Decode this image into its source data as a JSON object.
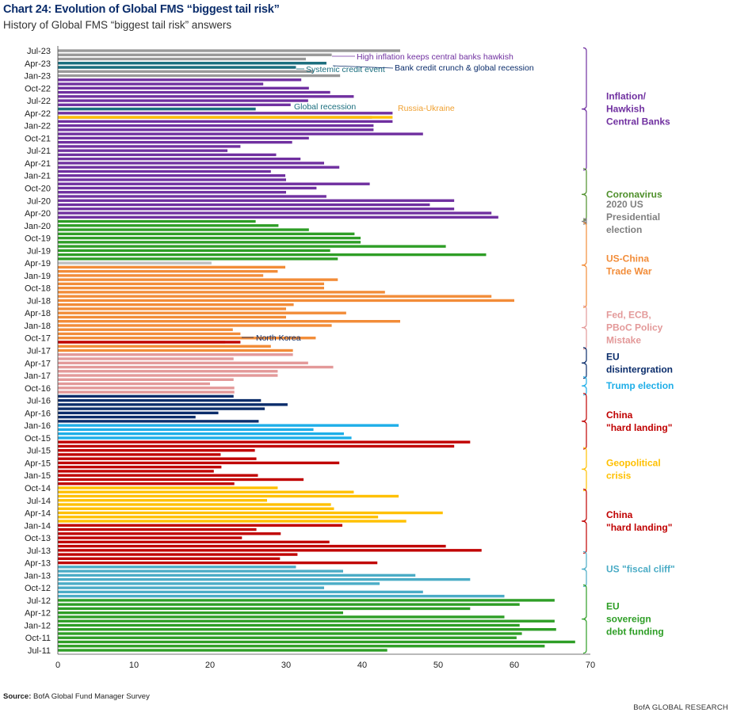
{
  "header": {
    "title": "Chart 24: Evolution of Global FMS “biggest tail risk”",
    "subtitle": "History of Global FMS “biggest tail risk” answers"
  },
  "source": {
    "label": "Source:",
    "text": "BofA Global Fund Manager Survey"
  },
  "footer": {
    "brand": "BofA GLOBAL RESEARCH"
  },
  "chart_data": {
    "type": "bar",
    "orientation": "horizontal",
    "first_month": "Jul-11",
    "last_month": "Jul-23",
    "xlim": [
      0,
      70
    ],
    "x_ticks": [
      0,
      10,
      20,
      30,
      40,
      50,
      60,
      70
    ],
    "y_tick_labels": [
      "Jul-23",
      "Apr-23",
      "Jan-23",
      "Oct-22",
      "Jul-22",
      "Apr-22",
      "Jan-22",
      "Oct-21",
      "Jul-21",
      "Apr-21",
      "Jan-21",
      "Oct-20",
      "Jul-20",
      "Apr-20",
      "Jan-20",
      "Oct-19",
      "Jul-19",
      "Apr-19",
      "Jan-19",
      "Oct-18",
      "Jul-18",
      "Apr-18",
      "Jan-18",
      "Oct-17",
      "Jul-17",
      "Apr-17",
      "Jan-17",
      "Oct-16",
      "Jul-16",
      "Apr-16",
      "Jan-16",
      "Oct-15",
      "Jul-15",
      "Apr-15",
      "Jan-15",
      "Oct-14",
      "Jul-14",
      "Apr-14",
      "Jan-14",
      "Oct-13",
      "Jul-13",
      "Apr-13",
      "Jan-13",
      "Oct-12",
      "Jul-12",
      "Apr-12",
      "Jan-12",
      "Oct-11",
      "Jul-11"
    ],
    "values": [
      43.3,
      64,
      68,
      60.3,
      61,
      65.5,
      60.7,
      65.3,
      58.7,
      37.5,
      54.2,
      60.7,
      65.3,
      58.7,
      48,
      35,
      42.3,
      54.2,
      47,
      37.5,
      31.3,
      42,
      29.2,
      31.5,
      55.7,
      51,
      35.7,
      24.2,
      29.3,
      26.1,
      37.4,
      45.8,
      42.1,
      50.6,
      36.3,
      35.9,
      27.5,
      44.8,
      38.9,
      28.9,
      23.2,
      32.3,
      26.3,
      20.5,
      21.5,
      37.0,
      26.1,
      21.4,
      25.9,
      52.1,
      54.2,
      38.6,
      37.6,
      33.6,
      44.8,
      26.4,
      18.1,
      21.1,
      27.2,
      30.2,
      26.7,
      23.1,
      23.2,
      23.2,
      20.0,
      23.1,
      28.9,
      28.9,
      36.2,
      32.9,
      23.1,
      30.9,
      30.9,
      28.0,
      22.0,
      33.9,
      24.0,
      23.0,
      36.0,
      45.0,
      30.0,
      37.9,
      30.0,
      31.0,
      60.0,
      57.0,
      43.0,
      35.0,
      35.0,
      36.8,
      27.0,
      28.9,
      29.9,
      20.2,
      36.8,
      56.3,
      35.8,
      51.0,
      39.8,
      39.8,
      39.0,
      33.0,
      29.0,
      26.0,
      57.9,
      57.0,
      52.1,
      48.9,
      52.1,
      35.3,
      30.0,
      34.0,
      41.0,
      30.0,
      29.9,
      28.0,
      37.0,
      35.0,
      31.9,
      28.7,
      22.3,
      24.0,
      30.8,
      33.0,
      48.0,
      41.5,
      41.5,
      44.0,
      41.3,
      44.0,
      26.0,
      30.6,
      32.9,
      38.9,
      35.8,
      33.0,
      27.0,
      32.0,
      37.1,
      33.6,
      31.1,
      35.3,
      32.6,
      36.0,
      45.0
    ],
    "series": [
      {
        "name": "EU sovereign debt funding",
        "color": "#2e9e26",
        "count": 13
      },
      {
        "name": "US \"fiscal cliff\"",
        "color": "#4bacc6",
        "count": 8
      },
      {
        "name": "China \"hard landing\"",
        "color": "#c00000",
        "count": 10
      },
      {
        "name": "Geopolitical crisis",
        "color": "#ffc000",
        "count": 9
      },
      {
        "name": "China \"hard landing\"",
        "color": "#c00000",
        "count": 11
      },
      {
        "name": "Trump election",
        "color": "#1eaee8",
        "count": 4
      },
      {
        "name": "EU disintergration",
        "color": "#0b2d6b",
        "count": 7
      },
      {
        "name": "Fed, ECB, PBoC Policy Mistake",
        "color": "#e39999",
        "count": 10
      },
      {
        "name": "US-China Trade War",
        "color": "#f28c38",
        "count": 21
      },
      {
        "name": "2020 US Presidential election",
        "color": "#bfbfbf",
        "count": 1
      },
      {
        "name": "Coronavirus",
        "color": "#2e9e26",
        "count": 10
      },
      {
        "name": "Inflation/ Hawkish Central Banks",
        "color": "#7030a0",
        "count": 34
      }
    ],
    "special_bars": [
      {
        "label": "Global recession",
        "color": "#1a6e7e",
        "month": "May-22",
        "value": 26.0
      },
      {
        "label": "Russia-Ukraine",
        "color": "#ffc000",
        "month": "Mar-22",
        "value": 44.0
      },
      {
        "label": "Systemic credit event",
        "color": "#1a6e7e",
        "month": "Mar-23",
        "value": 31.3
      },
      {
        "label": "Bank credit crunch & global recession",
        "color": "#1a6e7e",
        "month": "Apr-23",
        "value": 35.3
      },
      {
        "label": "North Korea",
        "color": "#c00000",
        "month": "Sep-17",
        "value": 24.0
      }
    ],
    "annotations": [
      {
        "text": "High inflation keeps central banks hawkish",
        "color": "#7030a0"
      },
      {
        "text": "Systemic credit event",
        "color": "#1a6e7e"
      },
      {
        "text": "Bank credit crunch & global recession",
        "color": "#0b2d6b"
      },
      {
        "text": "Global recession",
        "color": "#1a6e7e"
      },
      {
        "text": "Russia-Ukraine",
        "color": "#f0a030"
      },
      {
        "text": "North Korea",
        "color": "#0b2d6b"
      }
    ],
    "groups": [
      {
        "lines": [
          "Inflation/",
          "Hawkish",
          "Central Banks"
        ],
        "color": "#7030a0",
        "from": "Mar-21",
        "to": "Jul-23"
      },
      {
        "lines": [
          "Coronavirus"
        ],
        "color": "#4e8f2a",
        "from": "Mar-20",
        "to": "Feb-21"
      },
      {
        "lines": [
          "2020 US",
          "Presidential",
          "election"
        ],
        "color": "#808080",
        "from": "Feb-20",
        "to": "Feb-20"
      },
      {
        "lines": [
          "US-China",
          "Trade War"
        ],
        "color": "#f28c38",
        "from": "Jun-18",
        "to": "Jan-20"
      },
      {
        "lines": [
          "Fed, ECB,",
          "PBoC Policy",
          "Mistake"
        ],
        "color": "#e39999",
        "from": "Aug-17",
        "to": "May-18"
      },
      {
        "lines": [
          "EU",
          "disintergration"
        ],
        "color": "#0b2d6b",
        "from": "Jan-17",
        "to": "Jul-17"
      },
      {
        "lines": [
          "Trump election"
        ],
        "color": "#1eaee8",
        "from": "Sep-16",
        "to": "Dec-16"
      },
      {
        "lines": [
          "China",
          "\"hard landing\""
        ],
        "color": "#c00000",
        "from": "Aug-15",
        "to": "Aug-16"
      },
      {
        "lines": [
          "Geopolitical",
          "crisis"
        ],
        "color": "#ffc000",
        "from": "Oct-14",
        "to": "Jul-15"
      },
      {
        "lines": [
          "China",
          "\"hard landing\""
        ],
        "color": "#c00000",
        "from": "Jul-13",
        "to": "Sep-14"
      },
      {
        "lines": [
          "US \"fiscal cliff\""
        ],
        "color": "#4bacc6",
        "from": "Nov-12",
        "to": "Jun-13"
      },
      {
        "lines": [
          "EU",
          "sovereign",
          "debt funding"
        ],
        "color": "#2e9e26",
        "from": "Jul-11",
        "to": "Oct-12"
      }
    ],
    "xlabel": "",
    "ylabel": "",
    "grid": false,
    "legend": "right"
  }
}
